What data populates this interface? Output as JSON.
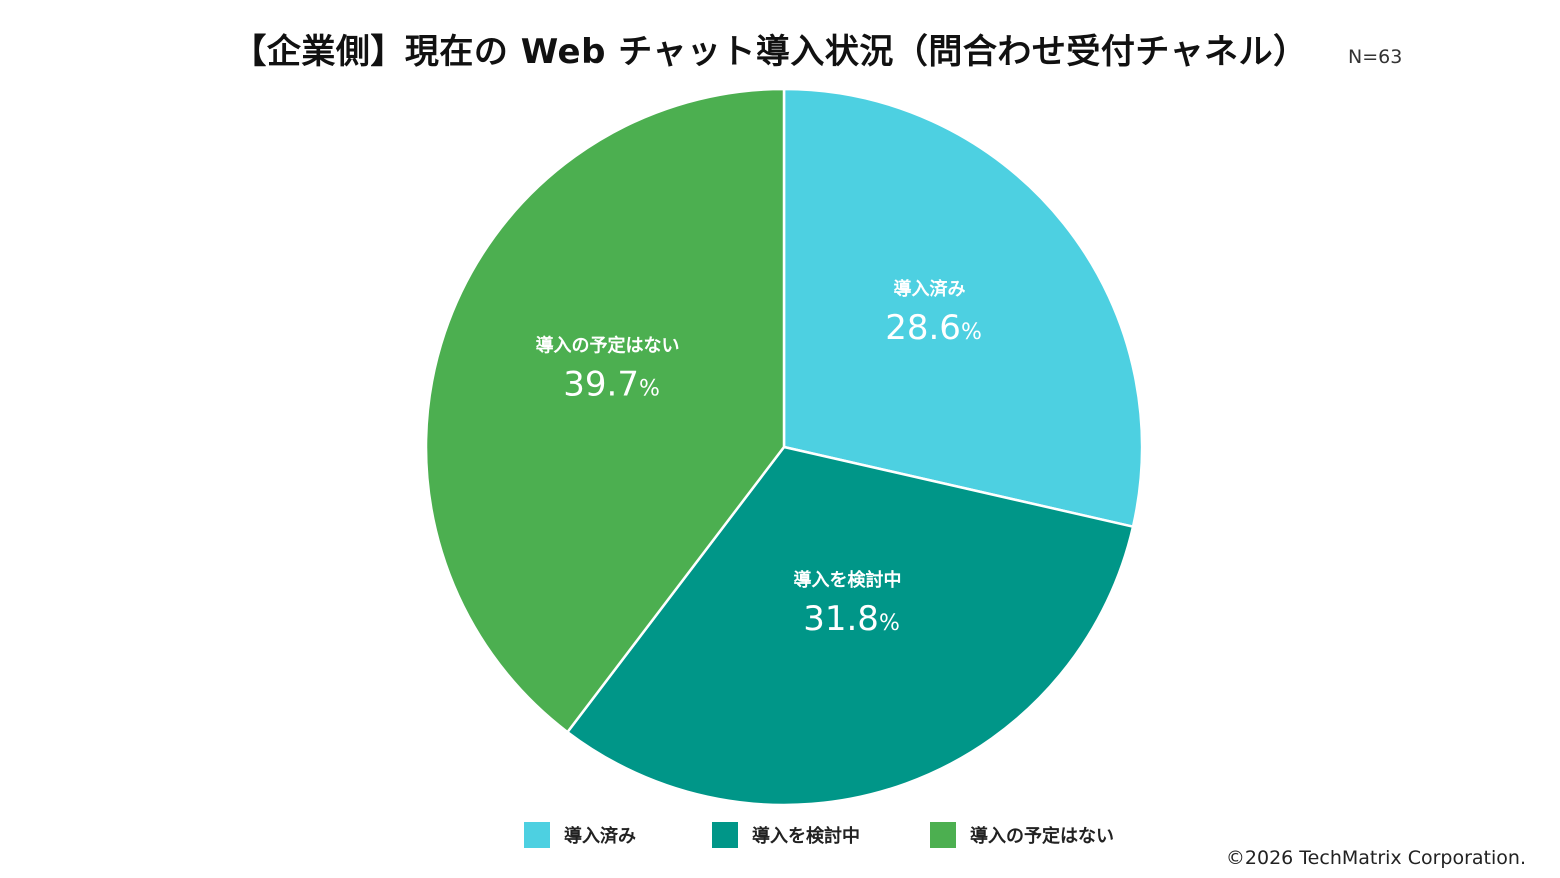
{
  "chart_title": "【企業側】現在の Web チャット導入状況（問合わせ受付チャネル）",
  "sample_size": "N=63",
  "copyright": "©2026 TechMatrix Corporation.",
  "chart_data": {
    "type": "pie",
    "title": "【企業側】現在の Web チャット導入状況（問合わせ受付チャネル）",
    "categories": [
      "導入済み",
      "導入を検討中",
      "導入の予定はない"
    ],
    "values": [
      28.6,
      31.8,
      39.7
    ],
    "value_labels": [
      "28.6",
      "31.8",
      "39.7"
    ],
    "unit": "%",
    "colors": [
      "#4dd0e1",
      "#009688",
      "#4caf50"
    ],
    "start_angle_deg": 0,
    "direction": "clockwise",
    "legend_position": "bottom"
  }
}
